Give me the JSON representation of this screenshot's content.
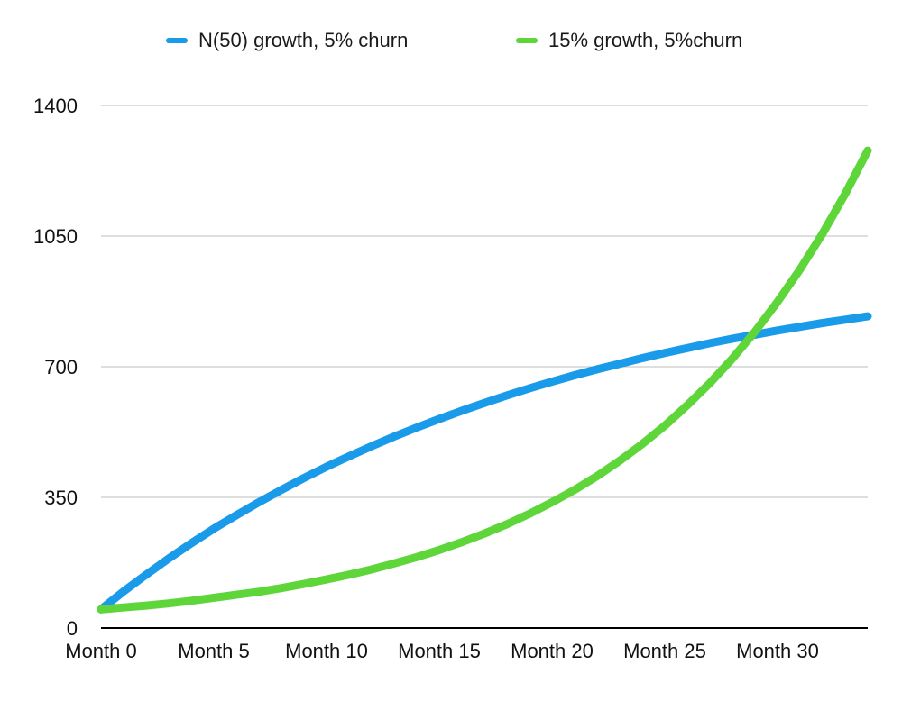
{
  "chart_data": {
    "type": "line",
    "title": "",
    "xlabel": "",
    "ylabel": "",
    "x_tick_labels": [
      "Month 0",
      "Month 5",
      "Month 10",
      "Month 15",
      "Month 20",
      "Month 25",
      "Month 30"
    ],
    "x_tick_values": [
      0,
      5,
      10,
      15,
      20,
      25,
      30
    ],
    "y_ticks": [
      0,
      350,
      700,
      1050,
      1400
    ],
    "xlim": [
      0,
      34
    ],
    "ylim": [
      0,
      1400
    ],
    "grid": "horizontal",
    "legend_position": "top",
    "series": [
      {
        "name": "N(50) growth, 5% churn",
        "color": "#1a9bea",
        "x": [
          0,
          1,
          2,
          3,
          4,
          5,
          6,
          7,
          8,
          9,
          10,
          11,
          12,
          13,
          14,
          15,
          16,
          17,
          18,
          19,
          20,
          21,
          22,
          23,
          24,
          25,
          26,
          27,
          28,
          29,
          30,
          31,
          32,
          33,
          34
        ],
        "values": [
          50,
          98,
          143,
          186,
          227,
          266,
          302,
          337,
          370,
          402,
          432,
          460,
          487,
          513,
          537,
          560,
          582,
          603,
          623,
          642,
          660,
          677,
          693,
          708,
          723,
          737,
          750,
          763,
          775,
          786,
          797,
          807,
          817,
          826,
          835
        ]
      },
      {
        "name": "15% growth, 5%churn",
        "color": "#5ed63a",
        "x": [
          0,
          1,
          2,
          3,
          4,
          5,
          6,
          7,
          8,
          9,
          10,
          11,
          12,
          13,
          14,
          15,
          16,
          17,
          18,
          19,
          20,
          21,
          22,
          23,
          24,
          25,
          26,
          27,
          28,
          29,
          30,
          31,
          32,
          33,
          34
        ],
        "values": [
          50,
          55,
          60,
          66,
          73,
          81,
          89,
          97,
          107,
          118,
          130,
          143,
          157,
          173,
          190,
          209,
          230,
          253,
          278,
          306,
          337,
          370,
          407,
          448,
          493,
          542,
          597,
          656,
          722,
          794,
          874,
          961,
          1057,
          1163,
          1279
        ]
      }
    ]
  }
}
